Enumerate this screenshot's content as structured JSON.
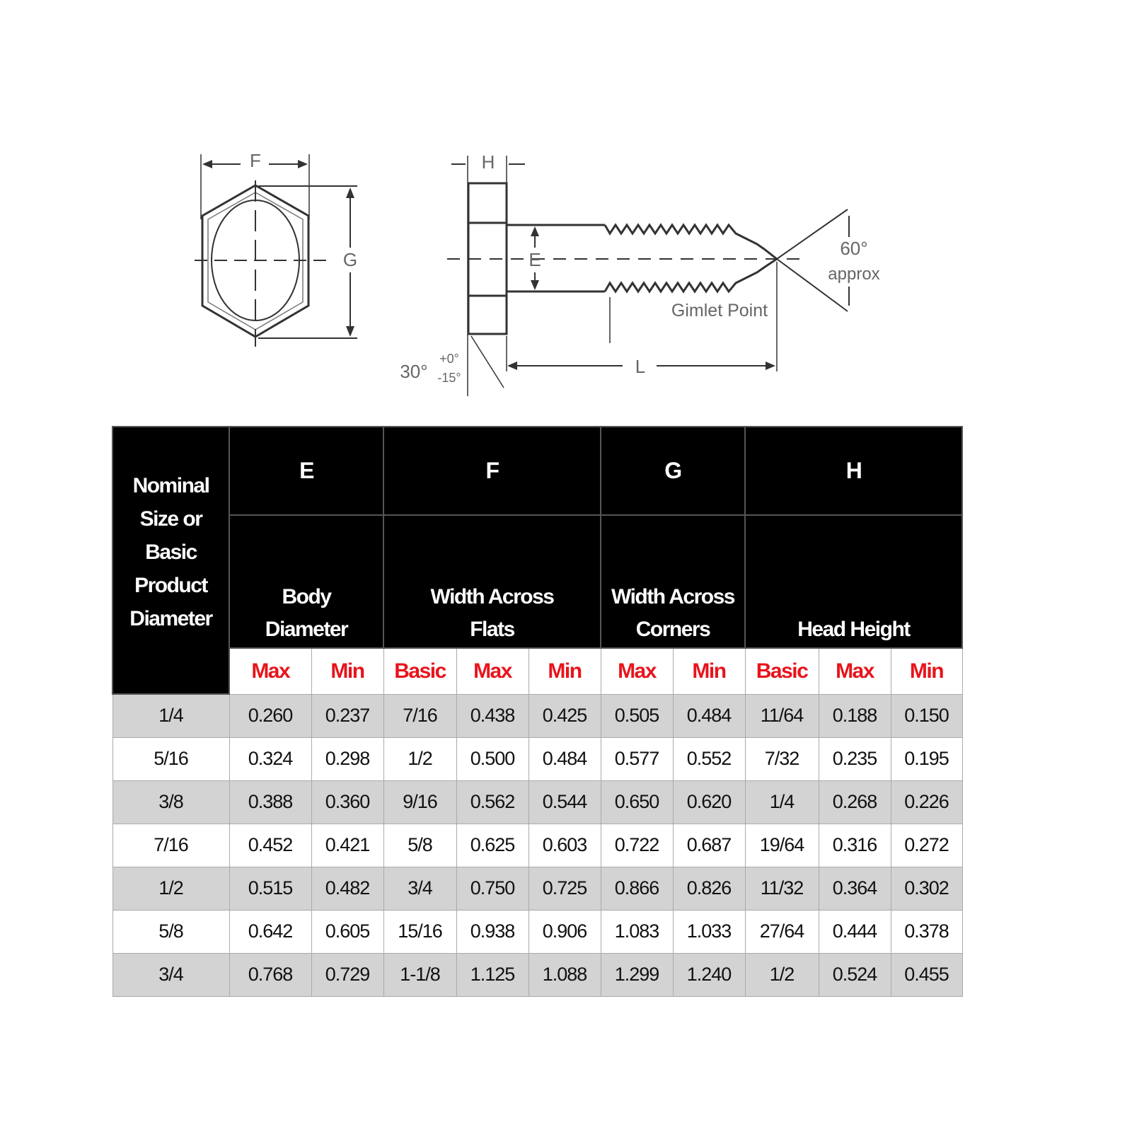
{
  "diagram": {
    "labels": {
      "F": "F",
      "G": "G",
      "H": "H",
      "E": "E",
      "L": "L",
      "angle_point": "60°",
      "approx": "approx",
      "gimlet": "Gimlet Point",
      "angle_head": "30°",
      "tol_plus": "+0°",
      "tol_minus": "-15°"
    }
  },
  "table": {
    "nominal_header": [
      "Nominal",
      "Size or",
      "Basic",
      "Product",
      "Diameter"
    ],
    "groups": [
      {
        "letter": "E",
        "name": [
          "Body",
          "Diameter"
        ],
        "subs": [
          "Max",
          "Min"
        ]
      },
      {
        "letter": "F",
        "name": [
          "Width Across",
          "Flats"
        ],
        "subs": [
          "Basic",
          "Max",
          "Min"
        ]
      },
      {
        "letter": "G",
        "name": [
          "Width Across",
          "Corners"
        ],
        "subs": [
          "Max",
          "Min"
        ]
      },
      {
        "letter": "H",
        "name": [
          "Head Height"
        ],
        "subs": [
          "Basic",
          "Max",
          "Min"
        ]
      }
    ],
    "rows": [
      [
        "1/4",
        "0.260",
        "0.237",
        "7/16",
        "0.438",
        "0.425",
        "0.505",
        "0.484",
        "11/64",
        "0.188",
        "0.150"
      ],
      [
        "5/16",
        "0.324",
        "0.298",
        "1/2",
        "0.500",
        "0.484",
        "0.577",
        "0.552",
        "7/32",
        "0.235",
        "0.195"
      ],
      [
        "3/8",
        "0.388",
        "0.360",
        "9/16",
        "0.562",
        "0.544",
        "0.650",
        "0.620",
        "1/4",
        "0.268",
        "0.226"
      ],
      [
        "7/16",
        "0.452",
        "0.421",
        "5/8",
        "0.625",
        "0.603",
        "0.722",
        "0.687",
        "19/64",
        "0.316",
        "0.272"
      ],
      [
        "1/2",
        "0.515",
        "0.482",
        "3/4",
        "0.750",
        "0.725",
        "0.866",
        "0.826",
        "11/32",
        "0.364",
        "0.302"
      ],
      [
        "5/8",
        "0.642",
        "0.605",
        "15/16",
        "0.938",
        "0.906",
        "1.083",
        "1.033",
        "27/64",
        "0.444",
        "0.378"
      ],
      [
        "3/4",
        "0.768",
        "0.729",
        "1-1/8",
        "1.125",
        "1.088",
        "1.299",
        "1.240",
        "1/2",
        "0.524",
        "0.455"
      ]
    ]
  },
  "colors": {
    "header_bg": "#000000",
    "sub_label": "#e8141c",
    "row_shade": "#d3d3d3"
  }
}
